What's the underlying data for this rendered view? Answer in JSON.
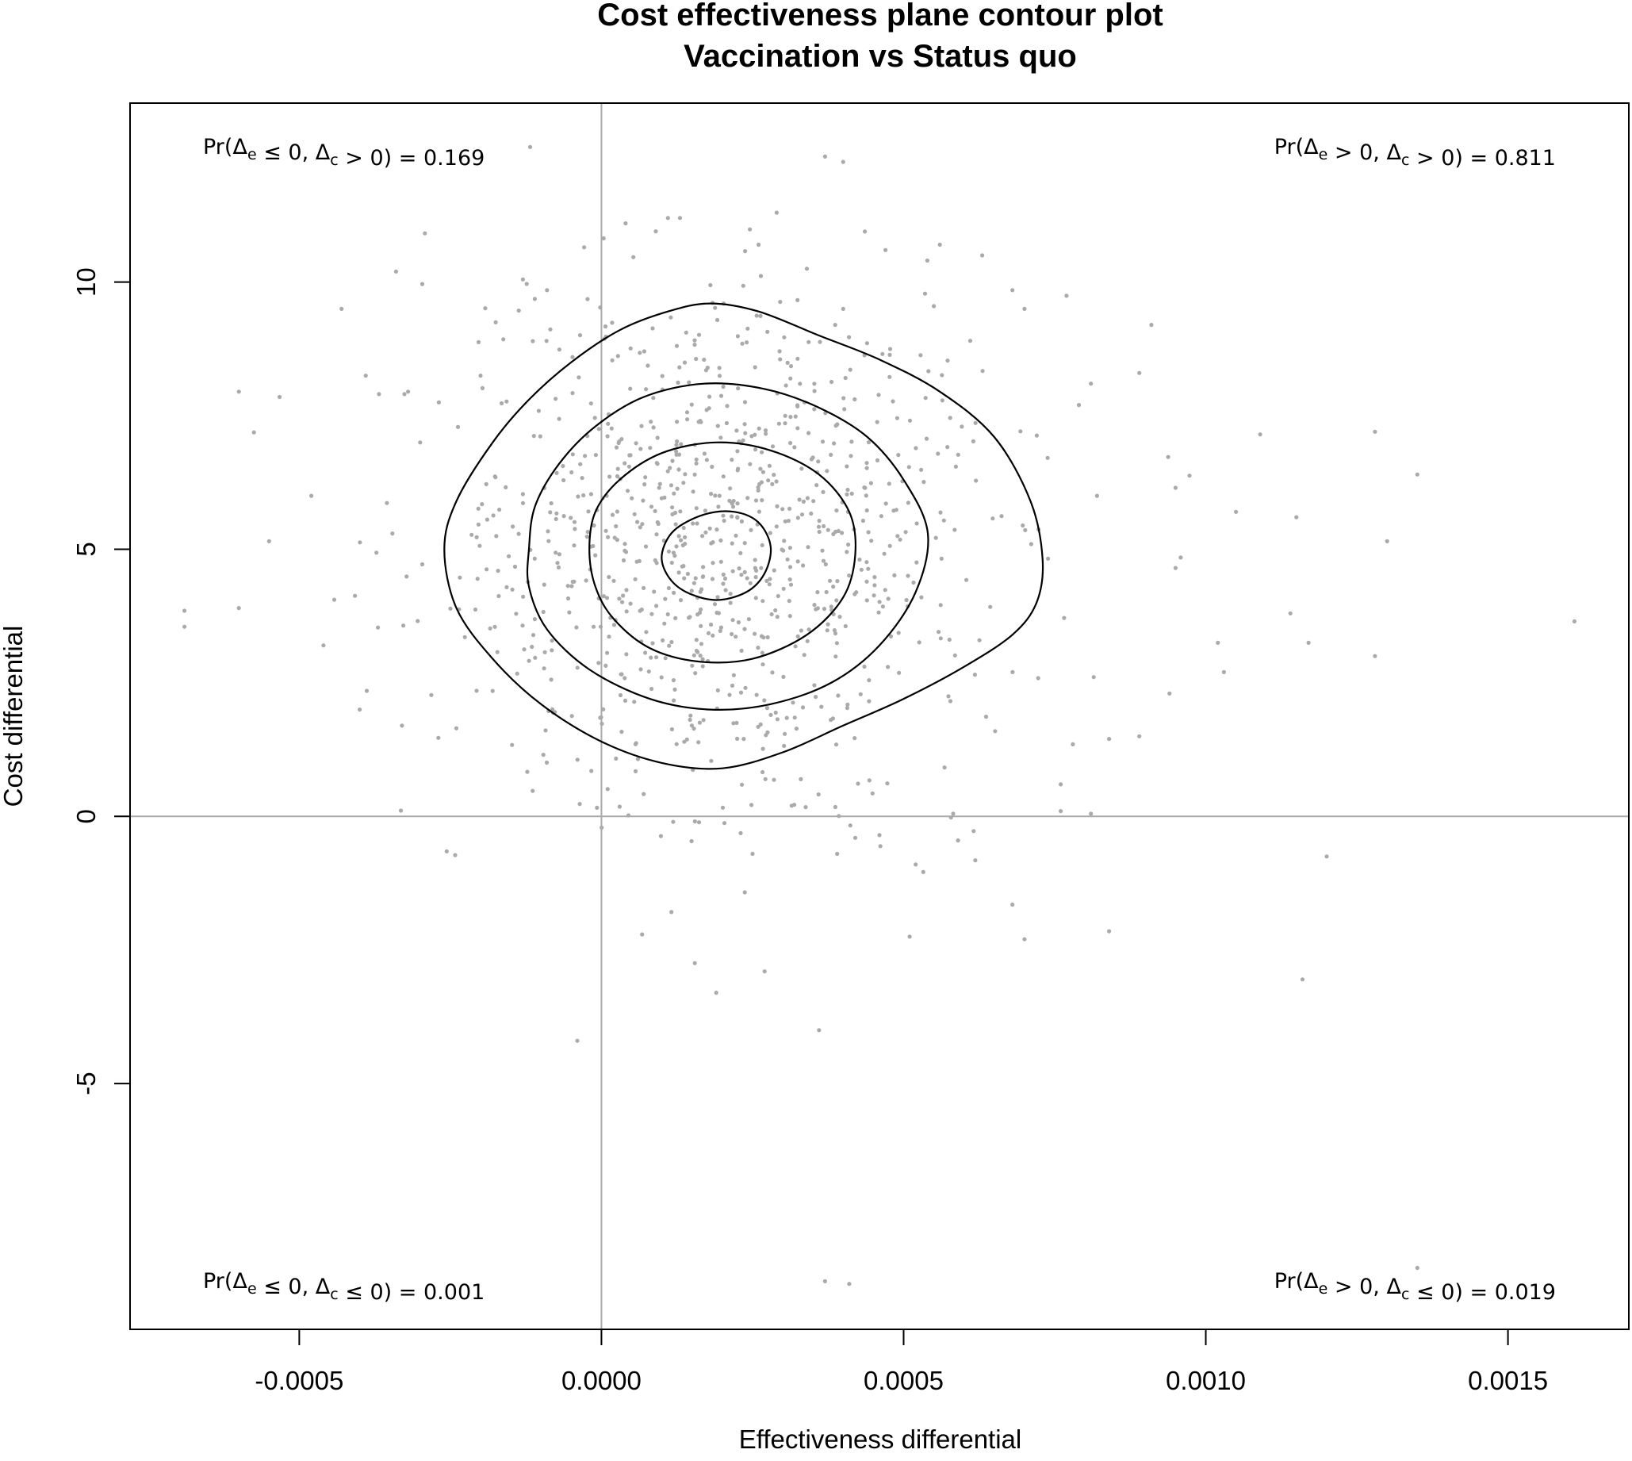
{
  "chart_data": {
    "type": "scatter",
    "title": "Cost effectiveness plane contour plot",
    "subtitle": "Vaccination vs Status quo",
    "xlabel": "Effectiveness differential",
    "ylabel": "Cost differential",
    "xlim": [
      -0.00078,
      0.0017
    ],
    "ylim": [
      -9.6,
      13.35
    ],
    "x_ticks": [
      -0.0005,
      0.0,
      0.0005,
      0.001,
      0.0015
    ],
    "x_tick_labels": [
      "-0.0005",
      "0.0000",
      "0.0005",
      "0.0010",
      "0.0015"
    ],
    "y_ticks": [
      -5,
      0,
      5,
      10
    ],
    "y_tick_labels": [
      "-5",
      "0",
      "5",
      "10"
    ],
    "reference_lines": {
      "x": 0,
      "y": 0,
      "color": "#aaaaaa"
    },
    "point_color": "#aaaaaa",
    "contour_color": "#000000",
    "grid": false,
    "quadrant_labels": [
      {
        "position": "top-left",
        "text": "Pr(Δe ≤ 0, Δc > 0) = 0.169",
        "value": 0.169
      },
      {
        "position": "top-right",
        "text": "Pr(Δe > 0, Δc > 0) = 0.811",
        "value": 0.811
      },
      {
        "position": "bottom-left",
        "text": "Pr(Δe ≤ 0, Δc ≤ 0) = 0.001",
        "value": 0.001
      },
      {
        "position": "bottom-right",
        "text": "Pr(Δe > 0, Δc ≤ 0) = 0.019",
        "value": 0.019
      }
    ],
    "scatter_summary": {
      "count": 1000,
      "mean_x": 0.00019,
      "mean_y": 5.0,
      "sd_x": 0.00023,
      "sd_y": 2.4
    },
    "outlier_points": [
      [
        -0.00069,
        3.85
      ],
      [
        -0.00069,
        3.55
      ],
      [
        -0.0006,
        7.95
      ],
      [
        -0.0006,
        3.9
      ],
      [
        -0.00055,
        5.15
      ],
      [
        -0.00048,
        6.0
      ],
      [
        -0.00046,
        3.2
      ],
      [
        -0.00043,
        9.5
      ],
      [
        -0.0004,
        2.0
      ],
      [
        -0.00039,
        8.25
      ],
      [
        -0.00033,
        1.7
      ],
      [
        -0.00032,
        7.95
      ],
      [
        -0.0003,
        7.0
      ],
      [
        -0.00024,
        1.65
      ],
      [
        -0.0002,
        8.25
      ],
      [
        -4e-05,
        -4.2
      ],
      [
        0.00037,
        12.35
      ],
      [
        0.0004,
        12.25
      ],
      [
        0.00037,
        -8.7
      ],
      [
        0.00041,
        -8.75
      ],
      [
        0.00036,
        -4.0
      ],
      [
        0.00019,
        -3.3
      ],
      [
        0.00027,
        -2.9
      ],
      [
        0.00025,
        -0.7
      ],
      [
        0.00039,
        -0.7
      ],
      [
        0.00042,
        -0.4
      ],
      [
        0.00046,
        -0.35
      ],
      [
        0.00052,
        -0.9
      ],
      [
        0.00051,
        -2.25
      ],
      [
        0.00059,
        -0.45
      ],
      [
        0.00068,
        -1.65
      ],
      [
        0.0007,
        -2.3
      ],
      [
        0.00084,
        -2.15
      ],
      [
        0.0012,
        -0.75
      ],
      [
        0.00116,
        -3.05
      ],
      [
        0.00135,
        -8.45
      ],
      [
        0.00161,
        3.65
      ],
      [
        0.00135,
        6.4
      ],
      [
        0.00128,
        7.2
      ],
      [
        0.0013,
        5.15
      ],
      [
        0.00128,
        3.0
      ],
      [
        0.00109,
        7.15
      ],
      [
        0.00115,
        5.6
      ],
      [
        0.00114,
        3.8
      ],
      [
        0.00117,
        3.25
      ],
      [
        0.00105,
        5.7
      ],
      [
        0.00102,
        3.25
      ],
      [
        0.00103,
        2.7
      ],
      [
        0.00091,
        9.2
      ],
      [
        0.00089,
        8.3
      ],
      [
        0.00095,
        6.15
      ],
      [
        0.00095,
        4.65
      ],
      [
        0.00094,
        2.3
      ],
      [
        0.00081,
        8.1
      ],
      [
        0.00079,
        7.7
      ],
      [
        0.00082,
        6.0
      ],
      [
        0.00081,
        0.05
      ],
      [
        0.00076,
        0.1
      ],
      [
        0.00076,
        0.6
      ],
      [
        0.00078,
        1.35
      ],
      [
        0.00084,
        1.45
      ],
      [
        0.00089,
        1.5
      ],
      [
        0.0007,
        9.5
      ],
      [
        0.00068,
        9.85
      ],
      [
        0.00063,
        10.5
      ],
      [
        0.00056,
        10.7
      ],
      [
        0.00047,
        10.6
      ],
      [
        0.00034,
        10.25
      ],
      [
        0.00026,
        10.7
      ],
      [
        9e-05,
        10.95
      ],
      [
        4e-05,
        11.1
      ],
      [
        0.00013,
        11.2
      ],
      [
        0.00011,
        11.2
      ],
      [
        0.00029,
        11.3
      ],
      [
        0.00055,
        9.55
      ],
      [
        0.0004,
        9.5
      ],
      [
        -0.00013,
        10.05
      ],
      [
        -9e-05,
        9.85
      ]
    ],
    "contours": [
      {
        "level": "outer",
        "points": [
          [
            -0.00026,
            5.0
          ],
          [
            -0.00024,
            5.9
          ],
          [
            -0.00018,
            7.0
          ],
          [
            -0.00012,
            7.8
          ],
          [
            -5e-05,
            8.5
          ],
          [
            3e-05,
            9.1
          ],
          [
            0.00011,
            9.45
          ],
          [
            0.00018,
            9.6
          ],
          [
            0.00026,
            9.45
          ],
          [
            0.00036,
            9.0
          ],
          [
            0.00046,
            8.55
          ],
          [
            0.00056,
            7.95
          ],
          [
            0.00065,
            7.1
          ],
          [
            0.00071,
            5.9
          ],
          [
            0.00073,
            4.8
          ],
          [
            0.00072,
            4.0
          ],
          [
            0.00068,
            3.4
          ],
          [
            0.0006,
            2.8
          ],
          [
            0.0005,
            2.2
          ],
          [
            0.0004,
            1.7
          ],
          [
            0.0003,
            1.2
          ],
          [
            0.0002,
            0.9
          ],
          [
            0.0001,
            1.0
          ],
          [
            0.0,
            1.4
          ],
          [
            -0.0001,
            2.1
          ],
          [
            -0.00018,
            2.95
          ],
          [
            -0.00024,
            3.9
          ]
        ]
      },
      {
        "level": "second",
        "points": [
          [
            -0.00012,
            5.0
          ],
          [
            -0.00011,
            5.8
          ],
          [
            -7e-05,
            6.6
          ],
          [
            -1e-05,
            7.3
          ],
          [
            7e-05,
            7.85
          ],
          [
            0.00017,
            8.1
          ],
          [
            0.00027,
            8.0
          ],
          [
            0.00036,
            7.65
          ],
          [
            0.00044,
            7.1
          ],
          [
            0.0005,
            6.3
          ],
          [
            0.00054,
            5.3
          ],
          [
            0.00052,
            4.2
          ],
          [
            0.00046,
            3.2
          ],
          [
            0.00038,
            2.5
          ],
          [
            0.00028,
            2.1
          ],
          [
            0.00018,
            2.0
          ],
          [
            8e-05,
            2.2
          ],
          [
            -2e-05,
            2.75
          ],
          [
            -9e-05,
            3.5
          ],
          [
            -0.00012,
            4.3
          ]
        ]
      },
      {
        "level": "third",
        "points": [
          [
            -2e-05,
            5.0
          ],
          [
            -1e-05,
            5.7
          ],
          [
            3e-05,
            6.3
          ],
          [
            0.0001,
            6.8
          ],
          [
            0.00019,
            7.0
          ],
          [
            0.00028,
            6.85
          ],
          [
            0.00036,
            6.4
          ],
          [
            0.00041,
            5.7
          ],
          [
            0.00042,
            4.9
          ],
          [
            0.0004,
            4.1
          ],
          [
            0.00034,
            3.4
          ],
          [
            0.00025,
            2.95
          ],
          [
            0.00016,
            2.9
          ],
          [
            8e-05,
            3.15
          ],
          [
            2e-05,
            3.7
          ],
          [
            -1e-05,
            4.3
          ]
        ]
      },
      {
        "level": "inner",
        "points": [
          [
            0.0001,
            4.9
          ],
          [
            0.00012,
            5.35
          ],
          [
            0.00017,
            5.65
          ],
          [
            0.00022,
            5.7
          ],
          [
            0.00026,
            5.5
          ],
          [
            0.00028,
            5.05
          ],
          [
            0.00027,
            4.55
          ],
          [
            0.00024,
            4.2
          ],
          [
            0.00019,
            4.05
          ],
          [
            0.00014,
            4.2
          ],
          [
            0.00011,
            4.5
          ]
        ]
      }
    ]
  }
}
